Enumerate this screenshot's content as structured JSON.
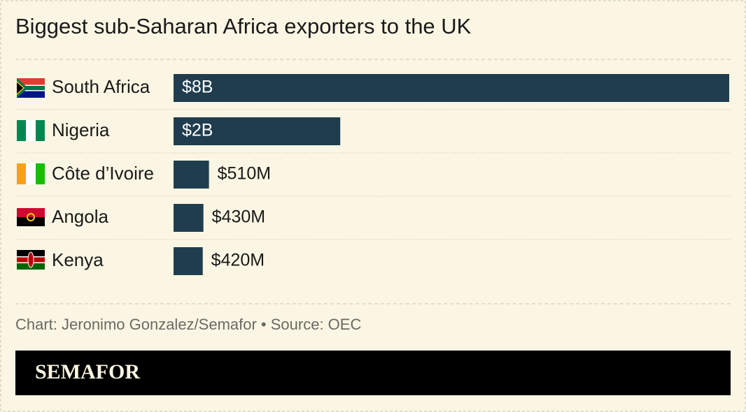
{
  "chart_data": {
    "type": "bar",
    "orientation": "horizontal",
    "title": "Biggest sub-Saharan Africa exporters to the UK",
    "categories": [
      "South Africa",
      "Nigeria",
      "Côte d’Ivoire",
      "Angola",
      "Kenya"
    ],
    "values": [
      8000000000,
      2400000000,
      510000000,
      430000000,
      420000000
    ],
    "value_labels": [
      "$8B",
      "$2B",
      "$510M",
      "$430M",
      "$420M"
    ],
    "color": "#1f3d4f",
    "source": "Chart: Jeronimo Gonzalez/Semafor • Source: OEC"
  },
  "logo": "SEMAFOR"
}
